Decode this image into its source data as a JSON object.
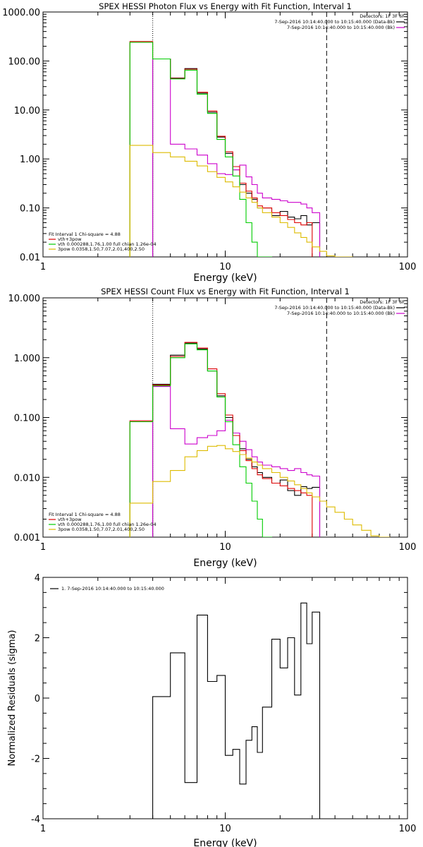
{
  "chart_data": [
    {
      "type": "line",
      "title": "SPEX HESSI Photon Flux vs Energy with Fit Function, Interval 1",
      "xlabel": "Energy (keV)",
      "ylabel": "",
      "xscale": "log",
      "yscale": "log",
      "xlim": [
        1,
        100
      ],
      "ylim": [
        0.01,
        1000
      ],
      "x_ticks": [
        "1",
        "10",
        "100"
      ],
      "y_ticks": [
        "0.01",
        "0.10",
        "1.00",
        "10.00",
        "100.00",
        "1000.00"
      ],
      "grid": false,
      "legend_top": {
        "placement": "top-right",
        "header": "Detectors: 1F 3F 6F",
        "entries": [
          {
            "label": "7-Sep-2016 10:14:40.000 to 10:15:40.000 (Data-Bk)",
            "color": "#000000"
          },
          {
            "label": "7-Sep-2016 10:14:40.000 to 10:15:40.000 (Bk)",
            "color": "#cc00cc"
          }
        ]
      },
      "legend_fit": {
        "placement": "bottom-left",
        "header": "Fit Interval 1   Chi-square = 4.88",
        "entries": [
          {
            "label": "vth+3pow",
            "color": "#dd0000"
          },
          {
            "label": "vth 0.000288,1.76,1.00  full chian 1.26e-04",
            "color": "#00cc00"
          },
          {
            "label": "3pow 0.0358,1.50,7.07,2.01,400,2.50",
            "color": "#ddbb00"
          }
        ]
      },
      "vlines": [
        {
          "x": 4.0,
          "style": "dotted"
        },
        {
          "x": 36.0,
          "style": "dashed"
        }
      ],
      "edges": [
        3.0,
        4.0,
        5.0,
        6.0,
        7.0,
        8.0,
        9.0,
        10.0,
        11.0,
        12.0,
        13.0,
        14.0,
        15.0,
        16.0,
        18.0,
        20.0,
        22.0,
        24.0,
        26.0,
        28.0,
        30.0,
        33.0,
        36.0,
        40.0,
        45.0,
        50.0,
        56.0
      ],
      "series": [
        {
          "color": "#000000",
          "start": 1,
          "values": [
            110,
            45,
            70,
            22,
            9,
            2.8,
            1.3,
            0.6,
            0.3,
            0.2,
            0.15,
            0.1,
            0.1,
            0.07,
            0.085,
            0.065,
            0.06,
            0.07,
            0.045,
            0.05
          ]
        },
        {
          "color": "#cc00cc",
          "start": 1,
          "values": [
            110,
            2,
            1.6,
            1.2,
            0.8,
            0.5,
            0.48,
            0.6,
            0.75,
            0.43,
            0.3,
            0.2,
            0.16,
            0.15,
            0.14,
            0.13,
            0.13,
            0.12,
            0.1,
            0.08
          ]
        },
        {
          "color": "#dd0000",
          "start": 0,
          "values": [
            250,
            110,
            44,
            68,
            23,
            9.5,
            2.9,
            1.4,
            0.7,
            0.32,
            0.22,
            0.16,
            0.11,
            0.1,
            0.08,
            0.07,
            0.058,
            0.05,
            0.045,
            0.05
          ]
        },
        {
          "color": "#00cc00",
          "start": 0,
          "values": [
            240,
            110,
            43,
            65,
            21,
            8.5,
            2.5,
            1.1,
            0.45,
            0.15,
            0.05,
            0.02,
            0.01,
            0.006
          ]
        },
        {
          "color": "#ddbb00",
          "start": 0,
          "values": [
            1.9,
            1.35,
            1.1,
            0.9,
            0.72,
            0.55,
            0.42,
            0.34,
            0.27,
            0.21,
            0.16,
            0.13,
            0.1,
            0.08,
            0.065,
            0.05,
            0.04,
            0.031,
            0.025,
            0.02,
            0.016,
            0.013,
            0.0105,
            0.0085,
            0.007
          ]
        }
      ]
    },
    {
      "type": "line",
      "title": "SPEX HESSI Count Flux vs Energy with Fit Function, Interval 1",
      "xlabel": "Energy (keV)",
      "ylabel": "",
      "xscale": "log",
      "yscale": "log",
      "xlim": [
        1,
        100
      ],
      "ylim": [
        0.001,
        10
      ],
      "x_ticks": [
        "1",
        "10",
        "100"
      ],
      "y_ticks": [
        "0.001",
        "0.010",
        "0.100",
        "1.000",
        "10.000"
      ],
      "grid": false,
      "legend_top": {
        "placement": "top-right",
        "header": "Detectors: 1F 3F 6F",
        "entries": [
          {
            "label": "7-Sep-2016 10:14:40.000 to 10:15:40.000 (Data-Bk)",
            "color": "#000000"
          },
          {
            "label": "7-Sep-2016 10:14:40.000 to 10:15:40.000 (Bk)",
            "color": "#cc00cc"
          }
        ]
      },
      "legend_fit": {
        "placement": "bottom-left",
        "header": "Fit Interval 1   Chi-square = 4.88",
        "entries": [
          {
            "label": "vth+3pow",
            "color": "#dd0000"
          },
          {
            "label": "vth 0.000288,1.76,1.00  full chian 1.26e-04",
            "color": "#00cc00"
          },
          {
            "label": "3pow 0.0358,1.50,7.07,2.01,400,2.50",
            "color": "#ddbb00"
          }
        ]
      },
      "vlines": [
        {
          "x": 4.0,
          "style": "dotted"
        },
        {
          "x": 36.0,
          "style": "dashed"
        }
      ],
      "edges": [
        3.0,
        4.0,
        5.0,
        6.0,
        7.0,
        8.0,
        9.0,
        10.0,
        11.0,
        12.0,
        13.0,
        14.0,
        15.0,
        16.0,
        18.0,
        20.0,
        22.0,
        24.0,
        26.0,
        28.0,
        30.0,
        33.0,
        36.0,
        40.0,
        45.0,
        50.0,
        56.0,
        63.0,
        70.0,
        80.0
      ],
      "series": [
        {
          "color": "#000000",
          "start": 1,
          "values": [
            0.36,
            1.1,
            1.75,
            1.4,
            0.6,
            0.23,
            0.1,
            0.055,
            0.03,
            0.02,
            0.015,
            0.012,
            0.01,
            0.008,
            0.009,
            0.006,
            0.005,
            0.007,
            0.0065,
            0.0068
          ]
        },
        {
          "color": "#cc00cc",
          "start": 1,
          "values": [
            0.33,
            0.065,
            0.036,
            0.046,
            0.05,
            0.06,
            0.09,
            0.055,
            0.04,
            0.029,
            0.022,
            0.018,
            0.016,
            0.015,
            0.014,
            0.013,
            0.014,
            0.012,
            0.011,
            0.0105
          ]
        },
        {
          "color": "#dd0000",
          "start": 0,
          "values": [
            0.088,
            0.35,
            1.05,
            1.8,
            1.45,
            0.65,
            0.25,
            0.11,
            0.05,
            0.028,
            0.019,
            0.014,
            0.011,
            0.0095,
            0.008,
            0.0072,
            0.0065,
            0.006,
            0.0055,
            0.005
          ]
        },
        {
          "color": "#00cc00",
          "start": 0,
          "values": [
            0.085,
            0.34,
            1.0,
            1.7,
            1.35,
            0.6,
            0.22,
            0.085,
            0.035,
            0.015,
            0.008,
            0.004,
            0.002,
            0.001
          ]
        },
        {
          "color": "#ddbb00",
          "start": 0,
          "values": [
            0.0037,
            0.0085,
            0.013,
            0.022,
            0.028,
            0.033,
            0.034,
            0.03,
            0.027,
            0.024,
            0.021,
            0.018,
            0.016,
            0.014,
            0.012,
            0.01,
            0.0087,
            0.0075,
            0.0065,
            0.0055,
            0.0047,
            0.004,
            0.0032,
            0.0026,
            0.002,
            0.0016,
            0.0013,
            0.00105,
            0.00085
          ]
        }
      ]
    },
    {
      "type": "line",
      "title": "",
      "xlabel": "Energy (keV)",
      "ylabel": "Normalized Residuals (sigma)",
      "xscale": "log",
      "yscale": "linear",
      "xlim": [
        1,
        100
      ],
      "ylim": [
        -4,
        4
      ],
      "x_ticks": [
        "1",
        "10",
        "100"
      ],
      "y_ticks": [
        "-4",
        "-2",
        "0",
        "2",
        "4"
      ],
      "grid": false,
      "legend_top": {
        "placement": "top-left",
        "header": "",
        "entries": [
          {
            "label": "1.  7-Sep-2016 10:14:40.000 to 10:15:40.000",
            "color": "#000000"
          }
        ]
      },
      "edges": [
        4.0,
        5.0,
        6.0,
        7.0,
        8.0,
        9.0,
        10.0,
        11.0,
        12.0,
        13.0,
        14.0,
        15.0,
        16.0,
        18.0,
        20.0,
        22.0,
        24.0,
        26.0,
        28.0,
        30.0,
        33.0,
        36.0
      ],
      "series": [
        {
          "color": "#000000",
          "start": 0,
          "values": [
            0.05,
            1.5,
            -2.8,
            2.75,
            0.55,
            0.75,
            -1.9,
            -1.7,
            -2.85,
            -1.4,
            -0.95,
            -1.8,
            -0.3,
            1.95,
            1.0,
            2.0,
            0.1,
            3.15,
            1.8,
            2.85,
            -4.0
          ]
        }
      ]
    }
  ]
}
